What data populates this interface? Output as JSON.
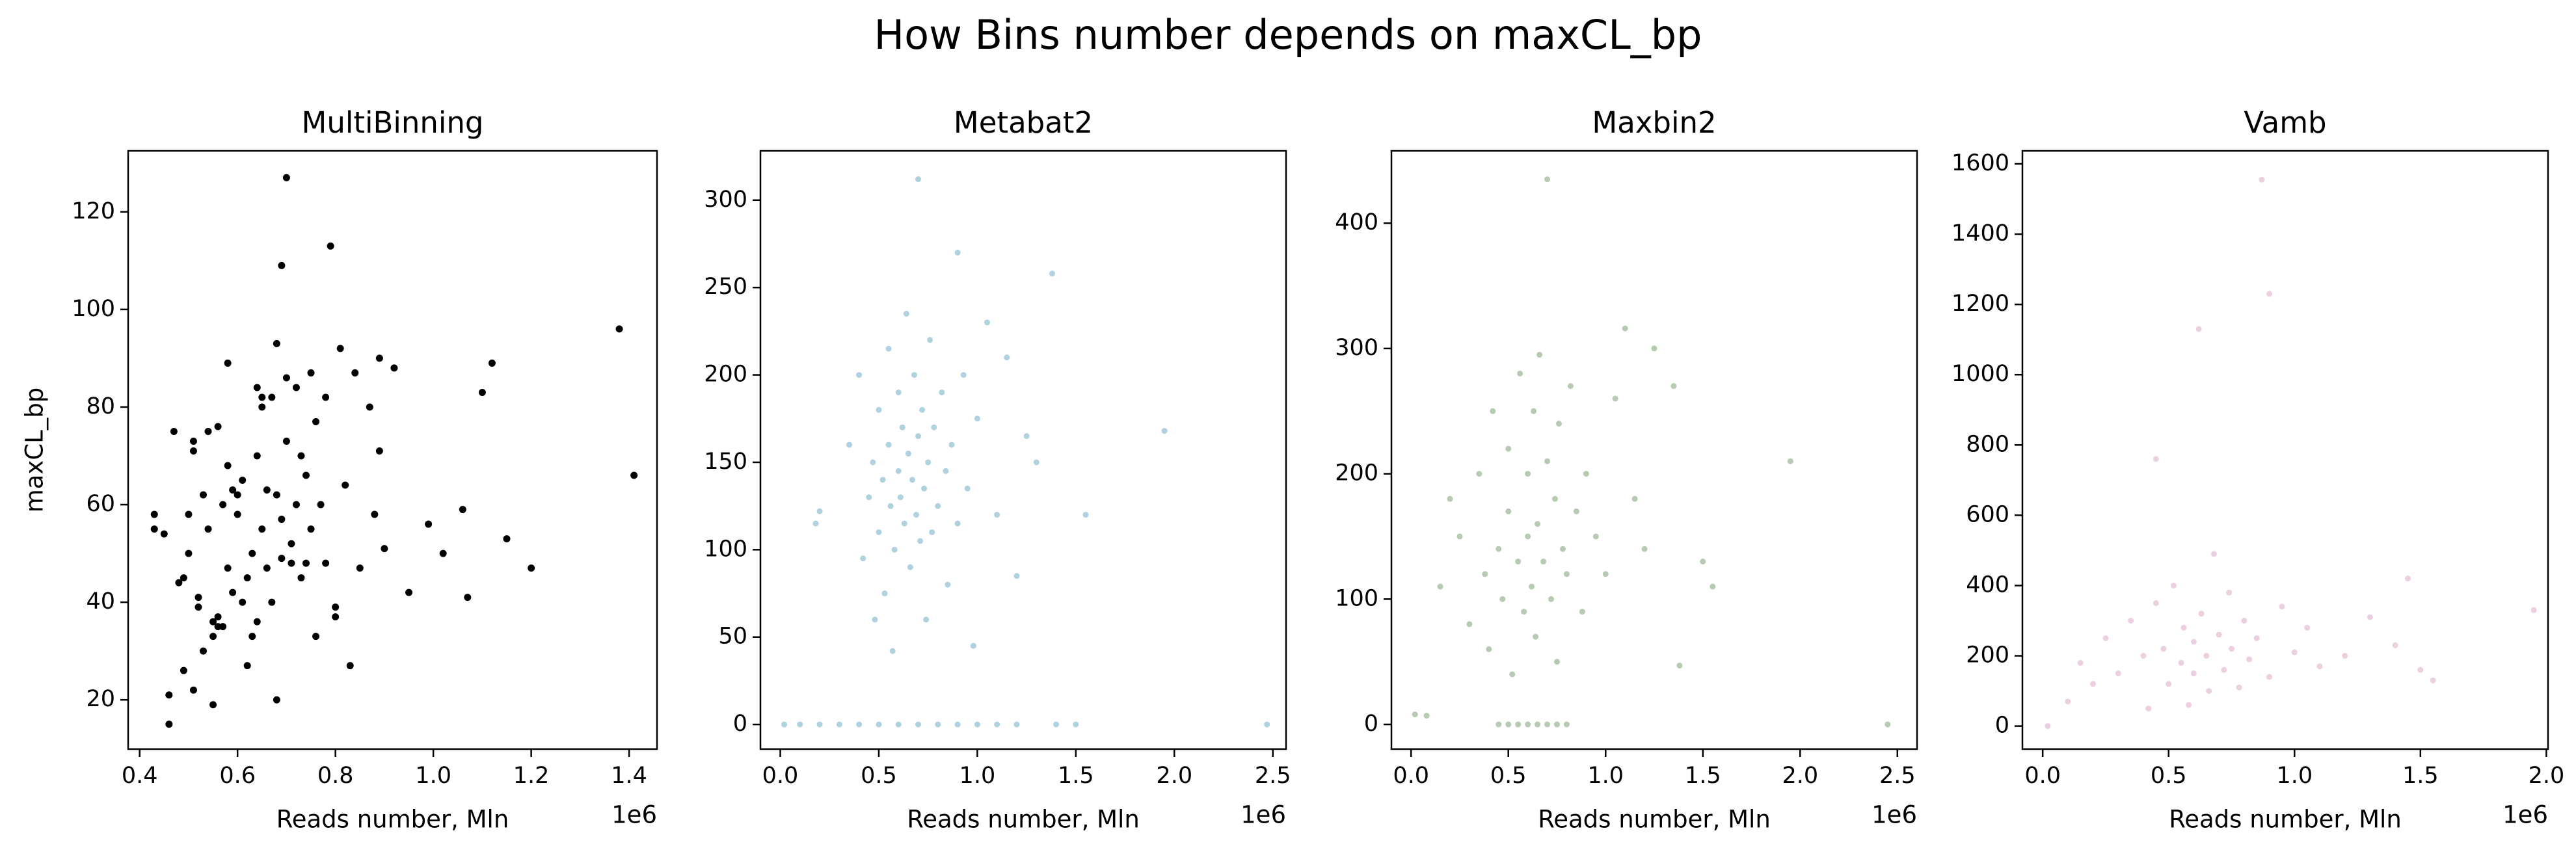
{
  "title": "How Bins number depends on maxCL_bp",
  "chart_data": [
    {
      "type": "scatter",
      "title": "MultiBinning",
      "x_label": "Reads number, Mln",
      "y_label": "maxCL_bp",
      "x_offset_label": "1e6",
      "color": "#000000",
      "xlim": [
        376500,
        1457000
      ],
      "ylim": [
        9.9,
        132.5
      ],
      "xticks": [
        {
          "value": 400000,
          "label": "0.4"
        },
        {
          "value": 600000,
          "label": "0.6"
        },
        {
          "value": 800000,
          "label": "0.8"
        },
        {
          "value": 1000000,
          "label": "1.0"
        },
        {
          "value": 1200000,
          "label": "1.2"
        },
        {
          "value": 1400000,
          "label": "1.4"
        }
      ],
      "yticks": [
        20,
        40,
        60,
        80,
        100,
        120
      ],
      "x": [
        430000,
        430000,
        450000,
        460000,
        460000,
        470000,
        480000,
        490000,
        490000,
        500000,
        500000,
        510000,
        510000,
        510000,
        520000,
        520000,
        530000,
        530000,
        540000,
        540000,
        550000,
        550000,
        550000,
        560000,
        560000,
        560000,
        570000,
        570000,
        580000,
        580000,
        580000,
        590000,
        590000,
        600000,
        600000,
        610000,
        610000,
        620000,
        620000,
        630000,
        630000,
        640000,
        640000,
        640000,
        650000,
        650000,
        650000,
        660000,
        660000,
        670000,
        670000,
        680000,
        680000,
        680000,
        690000,
        690000,
        690000,
        700000,
        700000,
        700000,
        710000,
        710000,
        720000,
        720000,
        730000,
        730000,
        740000,
        740000,
        750000,
        750000,
        760000,
        760000,
        770000,
        780000,
        780000,
        790000,
        800000,
        800000,
        810000,
        820000,
        830000,
        840000,
        850000,
        870000,
        880000,
        890000,
        890000,
        900000,
        920000,
        950000,
        990000,
        1020000,
        1060000,
        1070000,
        1100000,
        1120000,
        1150000,
        1200000,
        1380000,
        1410000
      ],
      "y": [
        58,
        55,
        54,
        15,
        21,
        75,
        44,
        26,
        45,
        50,
        58,
        22,
        73,
        71,
        41,
        39,
        30,
        62,
        75,
        55,
        33,
        36,
        19,
        76,
        35,
        37,
        35,
        60,
        68,
        89,
        47,
        63,
        42,
        62,
        58,
        65,
        40,
        27,
        45,
        50,
        33,
        70,
        84,
        36,
        82,
        80,
        55,
        63,
        47,
        82,
        40,
        93,
        20,
        62,
        109,
        57,
        49,
        86,
        127,
        73,
        52,
        48,
        84,
        60,
        70,
        45,
        48,
        66,
        87,
        55,
        77,
        33,
        60,
        82,
        48,
        113,
        39,
        37,
        92,
        64,
        27,
        87,
        47,
        80,
        58,
        90,
        71,
        51,
        88,
        42,
        56,
        50,
        59,
        41,
        83,
        89,
        53,
        47,
        96,
        66
      ]
    },
    {
      "type": "scatter",
      "title": "Metabat2",
      "x_label": "Reads number, Mln",
      "x_offset_label": "1e6",
      "color": "#8fbfd3",
      "xlim": [
        -100700,
        2567000
      ],
      "ylim": [
        -14.1,
        328.2
      ],
      "xticks": [
        {
          "value": 0,
          "label": "0.0"
        },
        {
          "value": 500000,
          "label": "0.5"
        },
        {
          "value": 1000000,
          "label": "1.0"
        },
        {
          "value": 1500000,
          "label": "1.5"
        },
        {
          "value": 2000000,
          "label": "2.0"
        },
        {
          "value": 2500000,
          "label": "2.5"
        }
      ],
      "yticks": [
        0,
        50,
        100,
        150,
        200,
        250,
        300
      ],
      "x": [
        20000,
        100000,
        200000,
        300000,
        400000,
        500000,
        600000,
        700000,
        800000,
        900000,
        1000000,
        1100000,
        1200000,
        1400000,
        1500000,
        2470000,
        180000,
        200000,
        350000,
        400000,
        420000,
        450000,
        470000,
        480000,
        500000,
        500000,
        520000,
        530000,
        550000,
        550000,
        560000,
        570000,
        580000,
        600000,
        600000,
        610000,
        620000,
        630000,
        640000,
        650000,
        660000,
        670000,
        680000,
        690000,
        700000,
        700000,
        710000,
        720000,
        730000,
        740000,
        750000,
        760000,
        770000,
        780000,
        800000,
        820000,
        840000,
        850000,
        870000,
        900000,
        900000,
        930000,
        950000,
        980000,
        1000000,
        1050000,
        1100000,
        1150000,
        1200000,
        1250000,
        1300000,
        1380000,
        1550000,
        1950000
      ],
      "y": [
        0,
        0,
        0,
        0,
        0,
        0,
        0,
        0,
        0,
        0,
        0,
        0,
        0,
        0,
        0,
        0,
        115,
        122,
        160,
        200,
        95,
        130,
        150,
        60,
        180,
        110,
        140,
        75,
        215,
        160,
        125,
        42,
        100,
        190,
        145,
        130,
        170,
        115,
        235,
        155,
        90,
        140,
        200,
        120,
        312,
        165,
        105,
        180,
        135,
        60,
        150,
        220,
        110,
        170,
        125,
        190,
        145,
        80,
        160,
        270,
        115,
        200,
        135,
        45,
        175,
        230,
        120,
        210,
        85,
        165,
        150,
        258,
        120,
        168
      ]
    },
    {
      "type": "scatter",
      "title": "Maxbin2",
      "x_label": "Reads number, Mln",
      "x_offset_label": "1e6",
      "color": "#97b592",
      "xlim": [
        -101000,
        2601000
      ],
      "ylim": [
        -19.7,
        457.7
      ],
      "xticks": [
        {
          "value": 0,
          "label": "0.0"
        },
        {
          "value": 500000,
          "label": "0.5"
        },
        {
          "value": 1000000,
          "label": "1.0"
        },
        {
          "value": 1500000,
          "label": "1.5"
        },
        {
          "value": 2000000,
          "label": "2.0"
        },
        {
          "value": 2500000,
          "label": "2.5"
        }
      ],
      "yticks": [
        0,
        100,
        200,
        300,
        400
      ],
      "x": [
        20000,
        80000,
        450000,
        500000,
        550000,
        600000,
        650000,
        700000,
        750000,
        800000,
        2450000,
        150000,
        200000,
        250000,
        300000,
        350000,
        380000,
        400000,
        420000,
        450000,
        470000,
        500000,
        500000,
        520000,
        550000,
        560000,
        580000,
        600000,
        600000,
        620000,
        630000,
        640000,
        650000,
        660000,
        680000,
        700000,
        700000,
        720000,
        740000,
        750000,
        760000,
        780000,
        800000,
        820000,
        850000,
        880000,
        900000,
        950000,
        1000000,
        1050000,
        1100000,
        1150000,
        1200000,
        1250000,
        1350000,
        1380000,
        1500000,
        1550000,
        1950000
      ],
      "y": [
        8,
        7,
        0,
        0,
        0,
        0,
        0,
        0,
        0,
        0,
        0,
        110,
        180,
        150,
        80,
        200,
        120,
        60,
        250,
        140,
        100,
        220,
        170,
        40,
        130,
        280,
        90,
        200,
        150,
        110,
        250,
        70,
        160,
        295,
        130,
        210,
        435,
        100,
        180,
        50,
        240,
        140,
        120,
        270,
        170,
        90,
        200,
        150,
        120,
        260,
        316,
        180,
        140,
        300,
        270,
        47,
        130,
        110,
        210
      ]
    },
    {
      "type": "scatter",
      "title": "Vamb",
      "x_label": "Reads number, Mln",
      "x_offset_label": "1e6",
      "color": "#e6bcd3",
      "xlim": [
        -80500,
        2006700
      ],
      "ylim": [
        -65.5,
        1637
      ],
      "xticks": [
        {
          "value": 0,
          "label": "0.0"
        },
        {
          "value": 500000,
          "label": "0.5"
        },
        {
          "value": 1000000,
          "label": "1.0"
        },
        {
          "value": 1500000,
          "label": "1.5"
        },
        {
          "value": 2000000,
          "label": "2.0"
        }
      ],
      "yticks": [
        0,
        200,
        400,
        600,
        800,
        1000,
        1200,
        1400,
        1600
      ],
      "x": [
        20000,
        100000,
        150000,
        200000,
        250000,
        300000,
        350000,
        400000,
        420000,
        450000,
        450000,
        480000,
        500000,
        520000,
        550000,
        560000,
        580000,
        600000,
        600000,
        620000,
        630000,
        650000,
        660000,
        680000,
        700000,
        720000,
        740000,
        750000,
        780000,
        800000,
        820000,
        850000,
        870000,
        900000,
        900000,
        950000,
        1000000,
        1050000,
        1100000,
        1200000,
        1300000,
        1400000,
        1450000,
        1500000,
        1550000,
        1950000
      ],
      "y": [
        0,
        70,
        180,
        120,
        250,
        150,
        300,
        200,
        50,
        760,
        350,
        220,
        120,
        400,
        180,
        280,
        60,
        240,
        150,
        1130,
        320,
        200,
        100,
        490,
        260,
        160,
        380,
        220,
        110,
        300,
        190,
        250,
        1555,
        1230,
        140,
        340,
        210,
        280,
        170,
        200,
        310,
        230,
        420,
        160,
        130,
        330
      ]
    }
  ]
}
